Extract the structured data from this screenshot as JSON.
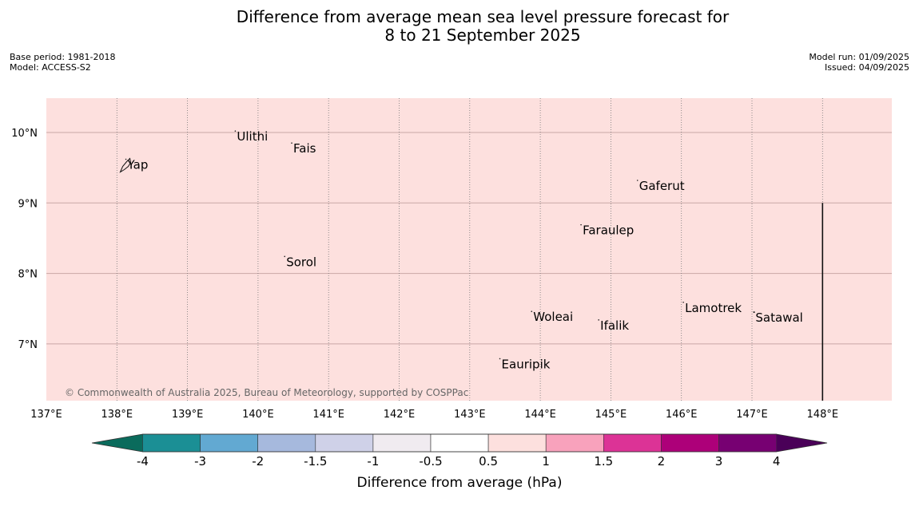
{
  "title_line1": "Difference from average mean sea level pressure forecast for",
  "title_line2": "8 to 21 September 2025",
  "meta_left": [
    "Base period: 1981-2018",
    "Model: ACCESS-S2"
  ],
  "meta_right": [
    "Model run: 01/09/2025",
    "Issued: 04/09/2025"
  ],
  "map": {
    "background_color": "#fde0de",
    "lon_ticks": [
      137,
      138,
      139,
      140,
      141,
      142,
      143,
      144,
      145,
      146,
      147,
      148
    ],
    "lon_labels": [
      "137°E",
      "138°E",
      "139°E",
      "140°E",
      "141°E",
      "142°E",
      "143°E",
      "144°E",
      "145°E",
      "146°E",
      "147°E",
      "148°E"
    ],
    "lat_ticks": [
      10,
      9,
      8,
      7
    ],
    "lat_labels": [
      "10°N",
      "9°N",
      "8°N",
      "7°N"
    ],
    "places": [
      {
        "name": "Yap",
        "lon": 138.15,
        "lat": 9.53
      },
      {
        "name": "Ulithi",
        "lon": 139.7,
        "lat": 9.93
      },
      {
        "name": "Fais",
        "lon": 140.5,
        "lat": 9.76
      },
      {
        "name": "Gaferut",
        "lon": 145.4,
        "lat": 9.23
      },
      {
        "name": "Faraulep",
        "lon": 144.6,
        "lat": 8.6
      },
      {
        "name": "Sorol",
        "lon": 140.4,
        "lat": 8.15
      },
      {
        "name": "Lamotrek",
        "lon": 146.05,
        "lat": 7.5
      },
      {
        "name": "Woleai",
        "lon": 143.9,
        "lat": 7.37
      },
      {
        "name": "Ifalik",
        "lon": 144.85,
        "lat": 7.25
      },
      {
        "name": "Satawal",
        "lon": 147.05,
        "lat": 7.36
      },
      {
        "name": "Eauripik",
        "lon": 143.45,
        "lat": 6.7
      }
    ],
    "copyright": "© Commonwealth of Australia 2025, Bureau of Meteorology, supported by COSPPac"
  },
  "colorbar": {
    "title": "Difference from average (hPa)",
    "labels": [
      "-4",
      "-3",
      "-2",
      "-1.5",
      "-1",
      "-0.5",
      "0.5",
      "1",
      "1.5",
      "2",
      "3",
      "4"
    ],
    "colors": [
      "#0a6b5c",
      "#1b8f95",
      "#62a9d2",
      "#a6b9dd",
      "#cfd1e8",
      "#f0ebf0",
      "#ffffff",
      "#fde0de",
      "#f8a2bc",
      "#dc3396",
      "#ad0079",
      "#770072",
      "#4a0058"
    ]
  }
}
